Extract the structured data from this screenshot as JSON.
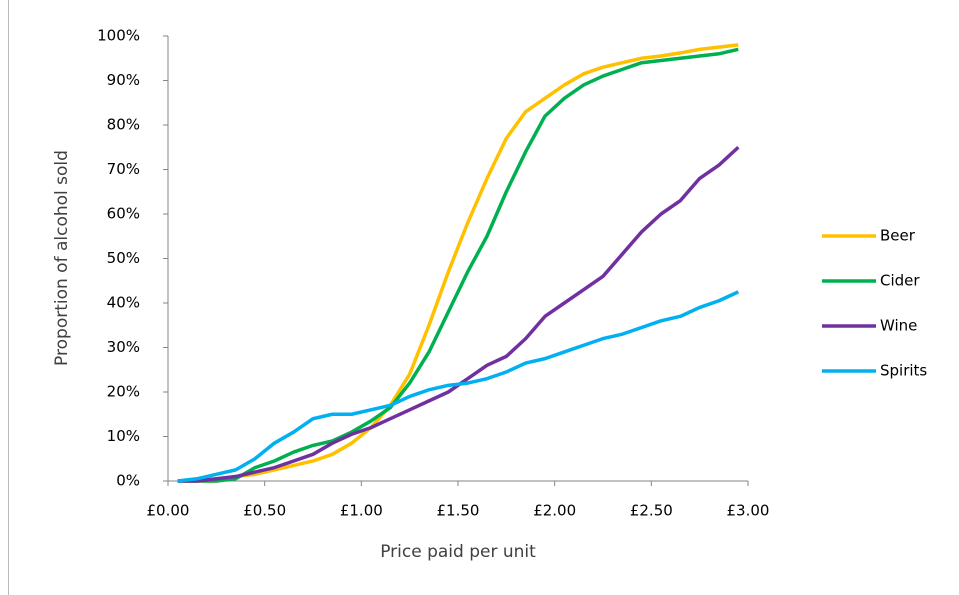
{
  "chart_data": {
    "type": "line",
    "x_label": "Price paid per unit",
    "y_label": "Proportion of alcohol sold",
    "x": [
      0.05,
      0.15,
      0.25,
      0.35,
      0.45,
      0.55,
      0.65,
      0.75,
      0.85,
      0.95,
      1.05,
      1.15,
      1.25,
      1.35,
      1.45,
      1.55,
      1.65,
      1.75,
      1.85,
      1.95,
      2.05,
      2.15,
      2.25,
      2.35,
      2.45,
      2.55,
      2.65,
      2.75,
      2.85,
      2.95
    ],
    "series": [
      {
        "name": "Beer",
        "color": "#FFC000",
        "values": [
          0,
          0,
          0,
          1,
          1.5,
          2.5,
          3.5,
          4.5,
          6,
          8.5,
          12,
          17,
          24,
          35,
          47,
          58,
          68,
          77,
          83,
          86,
          89,
          91.5,
          93,
          94,
          95,
          95.5,
          96.2,
          97,
          97.5,
          98
        ]
      },
      {
        "name": "Cider",
        "color": "#00B050",
        "values": [
          0,
          0,
          0,
          0.5,
          3,
          4.5,
          6.5,
          8,
          9,
          11,
          13.5,
          16.5,
          22,
          29,
          38,
          47,
          55,
          65,
          74,
          82,
          86,
          89,
          91,
          92.5,
          94,
          94.5,
          95,
          95.5,
          96,
          97
        ]
      },
      {
        "name": "Wine",
        "color": "#7030A0",
        "values": [
          0,
          0,
          0.5,
          1,
          2,
          3,
          4.5,
          6,
          8.5,
          10.5,
          12,
          14,
          16,
          18,
          20,
          23,
          26,
          28,
          32,
          37,
          40,
          43,
          46,
          51,
          56,
          60,
          63,
          68,
          71,
          75
        ]
      },
      {
        "name": "Spirits",
        "color": "#00B0F0",
        "values": [
          0,
          0.5,
          1.5,
          2.5,
          5,
          8.5,
          11,
          14,
          15,
          15,
          16,
          17,
          19,
          20.5,
          21.5,
          22,
          23,
          24.5,
          26.5,
          27.5,
          29,
          30.5,
          32,
          33,
          34.5,
          36,
          37,
          39,
          40.5,
          42.5
        ]
      }
    ],
    "xlim": [
      0,
      3
    ],
    "xticks": [
      {
        "value": 0,
        "label": "£0.00"
      },
      {
        "value": 0.5,
        "label": "£0.50"
      },
      {
        "value": 1,
        "label": "£1.00"
      },
      {
        "value": 1.5,
        "label": "£1.50"
      },
      {
        "value": 2,
        "label": "£2.00"
      },
      {
        "value": 2.5,
        "label": "£2.50"
      },
      {
        "value": 3,
        "label": "£3.00"
      }
    ],
    "ylim": [
      0,
      100
    ],
    "yticks": [
      {
        "value": 0,
        "label": "0%"
      },
      {
        "value": 10,
        "label": "10%"
      },
      {
        "value": 20,
        "label": "20%"
      },
      {
        "value": 30,
        "label": "30%"
      },
      {
        "value": 40,
        "label": "40%"
      },
      {
        "value": 50,
        "label": "50%"
      },
      {
        "value": 60,
        "label": "60%"
      },
      {
        "value": 70,
        "label": "70%"
      },
      {
        "value": 80,
        "label": "80%"
      },
      {
        "value": 90,
        "label": "90%"
      },
      {
        "value": 100,
        "label": "100%"
      }
    ],
    "grid": false,
    "legend": "right"
  }
}
